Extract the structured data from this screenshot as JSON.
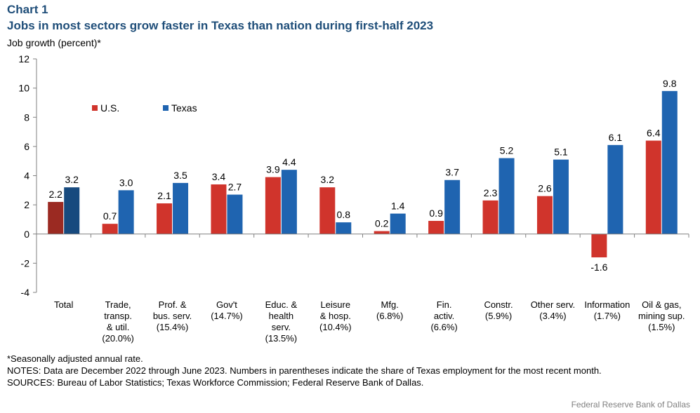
{
  "header": {
    "chart_label": "Chart 1",
    "title": "Jobs in most sectors grow faster in Texas than nation during first-half 2023",
    "ylabel": "Job growth  (percent)*"
  },
  "notes": {
    "line1": "*Seasonally adjusted annual rate.",
    "line2": "NOTES: Data are December 2022 through June 2023. Numbers in parentheses indicate the share of Texas employment for the most recent month.",
    "line3": "SOURCES: Bureau of Labor Statistics; Texas Workforce Commission; Federal Reserve Bank of Dallas."
  },
  "credit": "Federal  Reserve  Bank of Dallas",
  "chart_data": {
    "type": "bar",
    "title": "Jobs in most sectors grow faster in Texas than nation during first-half 2023",
    "ylabel": "Job growth  (percent)*",
    "ylim": [
      -4,
      12
    ],
    "yticks": [
      -4,
      -2,
      0,
      2,
      4,
      6,
      8,
      10,
      12
    ],
    "grid": false,
    "legend": "top-left",
    "categories": [
      "Total",
      "Trade,\ntransp.\n& util.\n(20.0%)",
      "Prof. &\nbus. serv.\n(15.4%)",
      "Gov't\n(14.7%)",
      "Educ. &\nhealth\nserv.\n(13.5%)",
      "Leisure\n& hosp.\n(10.4%)",
      "Mfg.\n(6.8%)",
      "Fin.\nactiv.\n(6.6%)",
      "Constr.\n(5.9%)",
      "Other serv.\n(3.4%)",
      "Information\n(1.7%)",
      "Oil & gas,\nmining sup.\n(1.5%)"
    ],
    "series": [
      {
        "name": "U.S.",
        "color": "#d0342c",
        "highlight_color": "#9b2a22",
        "values": [
          2.2,
          0.7,
          2.1,
          3.4,
          3.9,
          3.2,
          0.2,
          0.9,
          2.3,
          2.6,
          -1.6,
          6.4
        ],
        "labels": [
          "2.2",
          "0.7",
          "2.1",
          "3.4",
          "3.9",
          "3.2",
          "0.2",
          "0.9",
          "2.3",
          "2.6",
          "-1.6",
          "6.4"
        ]
      },
      {
        "name": "Texas",
        "color": "#1f64b0",
        "highlight_color": "#174a7e",
        "values": [
          3.2,
          3.0,
          3.5,
          2.7,
          4.4,
          0.8,
          1.4,
          3.7,
          5.2,
          5.1,
          6.1,
          9.8
        ],
        "labels": [
          "3.2",
          "3.0",
          "3.5",
          "2.7",
          "4.4",
          "0.8",
          "1.4",
          "3.7",
          "5.2",
          "5.1",
          "6.1",
          "9.8"
        ]
      }
    ]
  }
}
